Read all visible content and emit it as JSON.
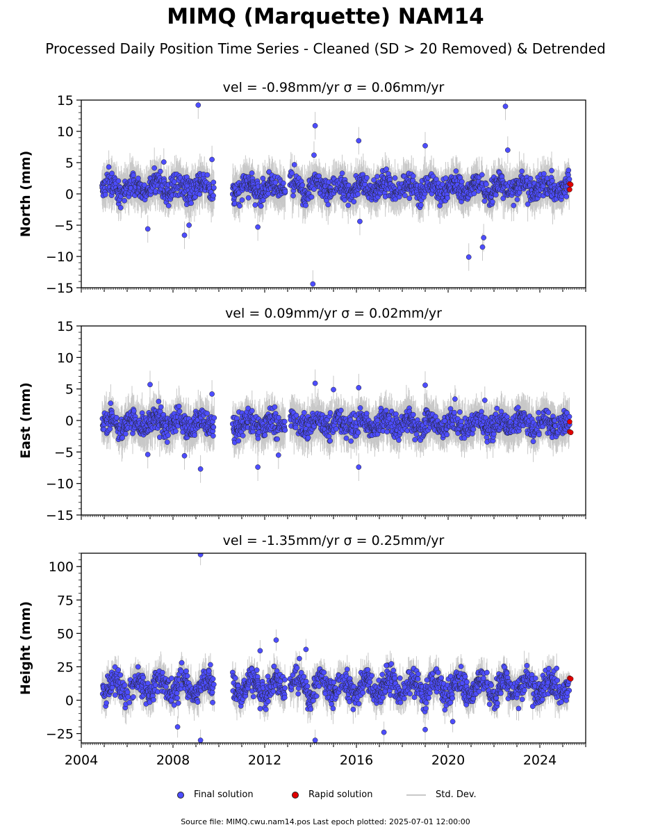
{
  "title": "MIMQ (Marquette) NAM14",
  "subtitle": "Processed Daily Position Time Series - Cleaned (SD > 20 Removed) & Detrended",
  "legend": {
    "final": "Final solution",
    "rapid": "Rapid solution",
    "std": "Std. Dev."
  },
  "footer": "Source file: MIMQ.cwu.nam14.pos  Last epoch plotted: 2025-07-01 12:00:00",
  "colors": {
    "final": "#4d4dff",
    "rapid": "#e00000",
    "std": "#c8c8c8",
    "grid_axis": "#000000"
  },
  "chart_data": [
    {
      "type": "scatter",
      "title": "vel = -0.98mm/yr   σ = 0.06mm/yr",
      "ylabel": "North (mm)",
      "xlim": [
        2004,
        2026
      ],
      "ylim": [
        -15,
        15
      ],
      "yticks": [
        15,
        10,
        5,
        0,
        -5,
        -10,
        -15
      ],
      "ytick_labels": [
        "15",
        "10",
        "5",
        "0",
        "−5",
        "−10",
        "−15"
      ],
      "rapid": [
        [
          2025.3,
          1.6
        ],
        [
          2025.35,
          1.5
        ],
        [
          2025.3,
          0.7
        ]
      ],
      "outliers": [
        [
          2009.1,
          14.2
        ],
        [
          2014.2,
          10.9
        ],
        [
          2014.1,
          -14.4
        ],
        [
          2016.1,
          8.5
        ],
        [
          2019.0,
          7.7
        ],
        [
          2022.5,
          14.0
        ],
        [
          2022.6,
          7.0
        ],
        [
          2020.9,
          -10.1
        ],
        [
          2021.5,
          -8.5
        ],
        [
          2021.55,
          -7.0
        ],
        [
          2006.9,
          -5.6
        ],
        [
          2008.5,
          -6.6
        ],
        [
          2008.7,
          -5.0
        ],
        [
          2011.7,
          -5.3
        ],
        [
          2016.15,
          -4.4
        ],
        [
          2014.15,
          6.2
        ],
        [
          2009.7,
          5.5
        ],
        [
          2007.6,
          5.1
        ]
      ],
      "segments": [
        [
          2004.9,
          2009.8
        ],
        [
          2010.6,
          2012.9
        ],
        [
          2013.1,
          2024.6
        ],
        [
          2024.5,
          2025.3
        ]
      ]
    },
    {
      "type": "scatter",
      "title": "vel = 0.09mm/yr   σ = 0.02mm/yr",
      "ylabel": "East (mm)",
      "xlim": [
        2004,
        2026
      ],
      "ylim": [
        -15,
        15
      ],
      "yticks": [
        15,
        10,
        5,
        0,
        -5,
        -10,
        -15
      ],
      "ytick_labels": [
        "15",
        "10",
        "5",
        "0",
        "−5",
        "−10",
        "−15"
      ],
      "rapid": [
        [
          2025.3,
          -0.2
        ],
        [
          2025.3,
          -1.8
        ],
        [
          2025.35,
          -1.9
        ]
      ],
      "outliers": [
        [
          2007.0,
          5.7
        ],
        [
          2009.2,
          -7.7
        ],
        [
          2011.7,
          -7.4
        ],
        [
          2014.2,
          5.9
        ],
        [
          2015.0,
          4.9
        ],
        [
          2016.1,
          5.2
        ],
        [
          2016.1,
          -7.4
        ],
        [
          2019.0,
          5.6
        ],
        [
          2020.3,
          3.4
        ],
        [
          2021.6,
          3.2
        ],
        [
          2008.5,
          -5.6
        ],
        [
          2006.9,
          -5.4
        ],
        [
          2012.6,
          -5.5
        ],
        [
          2009.7,
          4.2
        ]
      ],
      "segments": [
        [
          2004.9,
          2009.8
        ],
        [
          2010.6,
          2012.9
        ],
        [
          2013.1,
          2024.6
        ],
        [
          2024.5,
          2025.3
        ]
      ]
    },
    {
      "type": "scatter",
      "title": "vel = -1.35mm/yr   σ = 0.25mm/yr",
      "ylabel": "Height (mm)",
      "xlim": [
        2004,
        2026
      ],
      "ylim": [
        -32,
        110
      ],
      "yticks": [
        100,
        75,
        50,
        25,
        0,
        -25
      ],
      "ytick_labels": [
        "100",
        "75",
        "50",
        "25",
        "0",
        "−25"
      ],
      "xticks": [
        2004,
        2008,
        2012,
        2016,
        2020,
        2024
      ],
      "xtick_labels": [
        "2004",
        "2008",
        "2012",
        "2016",
        "2020",
        "2024"
      ],
      "rapid": [
        [
          2025.3,
          16.5
        ],
        [
          2025.35,
          16.0
        ]
      ],
      "outliers": [
        [
          2009.2,
          109
        ],
        [
          2009.2,
          -30
        ],
        [
          2014.2,
          -30
        ],
        [
          2013.8,
          38
        ],
        [
          2012.5,
          45
        ],
        [
          2011.8,
          37
        ],
        [
          2017.2,
          -24
        ],
        [
          2008.2,
          -20
        ],
        [
          2019.0,
          -22
        ],
        [
          2020.2,
          -16
        ],
        [
          2017.3,
          26
        ],
        [
          2025.2,
          5.5
        ]
      ],
      "segments": [
        [
          2004.9,
          2009.8
        ],
        [
          2010.6,
          2012.9
        ],
        [
          2013.1,
          2024.6
        ],
        [
          2024.5,
          2025.3
        ]
      ]
    }
  ]
}
